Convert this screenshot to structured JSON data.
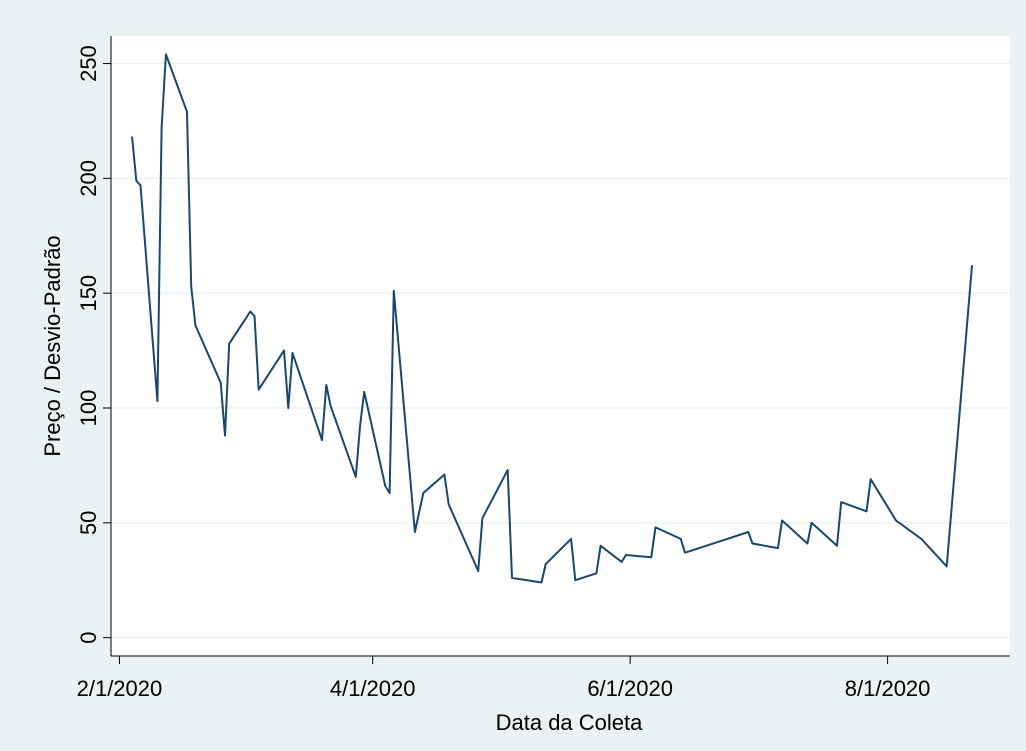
{
  "chart_data": {
    "type": "line",
    "title": "",
    "xlabel": "Data da Coleta",
    "ylabel": "Preço / Desvio-Padrão",
    "x_tick_labels": [
      "2/1/2020",
      "4/1/2020",
      "6/1/2020",
      "8/1/2020"
    ],
    "y_tick_labels": [
      "0",
      "50",
      "100",
      "150",
      "200",
      "250"
    ],
    "y_ticks": [
      0,
      50,
      100,
      150,
      200,
      250
    ],
    "xlim": [
      "2020-01-30",
      "2020-08-30"
    ],
    "ylim": [
      -8,
      262
    ],
    "grid": "horizontal",
    "legend": "none",
    "colors": {
      "background": "#eaf2f3",
      "plot_area": "#ffffff",
      "gridline": "#eaf2f3",
      "line": "#1a476f"
    },
    "series": [
      {
        "values": [
          [
            "2020-02-04",
            218
          ],
          [
            "2020-02-05",
            199
          ],
          [
            "2020-02-06",
            197
          ],
          [
            "2020-02-10",
            103
          ],
          [
            "2020-02-11",
            222
          ],
          [
            "2020-02-12",
            254
          ],
          [
            "2020-02-17",
            229
          ],
          [
            "2020-02-18",
            153
          ],
          [
            "2020-02-19",
            136
          ],
          [
            "2020-02-25",
            111
          ],
          [
            "2020-02-26",
            88
          ],
          [
            "2020-02-27",
            128
          ],
          [
            "2020-03-03",
            142
          ],
          [
            "2020-03-04",
            140
          ],
          [
            "2020-03-05",
            108
          ],
          [
            "2020-03-11",
            125
          ],
          [
            "2020-03-12",
            100
          ],
          [
            "2020-03-13",
            124
          ],
          [
            "2020-03-20",
            86
          ],
          [
            "2020-03-21",
            110
          ],
          [
            "2020-03-22",
            101
          ],
          [
            "2020-03-28",
            70
          ],
          [
            "2020-03-29",
            92
          ],
          [
            "2020-03-30",
            107
          ],
          [
            "2020-04-04",
            66
          ],
          [
            "2020-04-05",
            63
          ],
          [
            "2020-04-06",
            151
          ],
          [
            "2020-04-11",
            46
          ],
          [
            "2020-04-13",
            63
          ],
          [
            "2020-04-18",
            71
          ],
          [
            "2020-04-19",
            58
          ],
          [
            "2020-04-26",
            29
          ],
          [
            "2020-04-27",
            52
          ],
          [
            "2020-05-03",
            73
          ],
          [
            "2020-05-04",
            26
          ],
          [
            "2020-05-11",
            24
          ],
          [
            "2020-05-12",
            32
          ],
          [
            "2020-05-18",
            43
          ],
          [
            "2020-05-19",
            25
          ],
          [
            "2020-05-24",
            28
          ],
          [
            "2020-05-25",
            40
          ],
          [
            "2020-05-30",
            33
          ],
          [
            "2020-05-31",
            36
          ],
          [
            "2020-06-06",
            35
          ],
          [
            "2020-06-07",
            48
          ],
          [
            "2020-06-13",
            43
          ],
          [
            "2020-06-14",
            37
          ],
          [
            "2020-06-24",
            43
          ],
          [
            "2020-06-29",
            46
          ],
          [
            "2020-06-30",
            41
          ],
          [
            "2020-07-06",
            39
          ],
          [
            "2020-07-07",
            51
          ],
          [
            "2020-07-13",
            41
          ],
          [
            "2020-07-14",
            50
          ],
          [
            "2020-07-20",
            40
          ],
          [
            "2020-07-21",
            59
          ],
          [
            "2020-07-27",
            55
          ],
          [
            "2020-07-28",
            69
          ],
          [
            "2020-08-03",
            51
          ],
          [
            "2020-08-09",
            43
          ],
          [
            "2020-08-15",
            31
          ],
          [
            "2020-08-21",
            162
          ]
        ]
      }
    ]
  }
}
